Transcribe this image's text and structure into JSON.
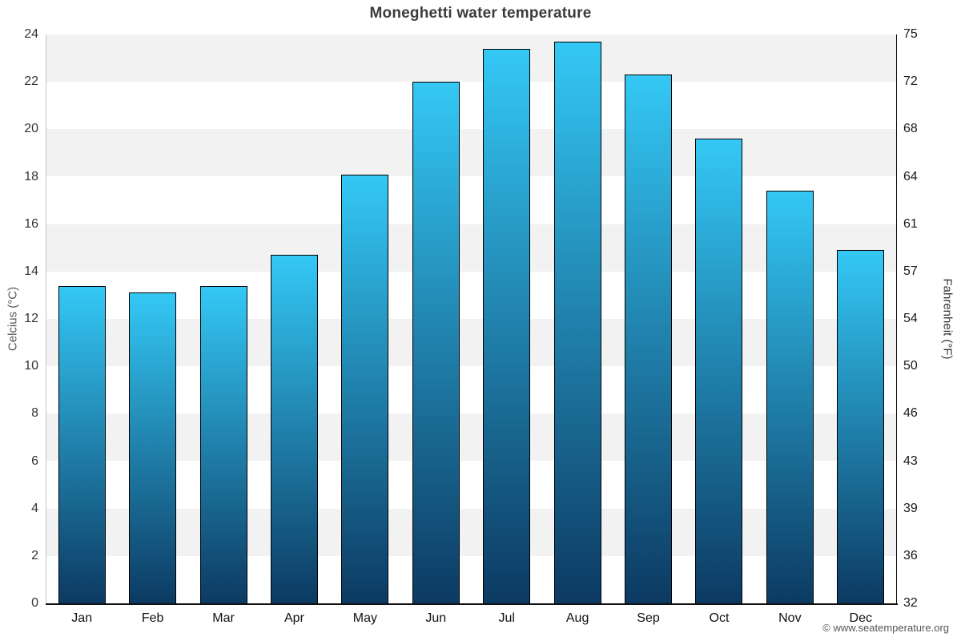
{
  "title": "Moneghetti water temperature",
  "footer": "© www.seatemperature.org",
  "left_axis": {
    "title": "Celcius (°C)",
    "ticks": [
      "24",
      "22",
      "20",
      "18",
      "16",
      "14",
      "12",
      "10",
      "8",
      "6",
      "4",
      "2",
      "0"
    ]
  },
  "right_axis": {
    "title": "Fahrenheit (°F)",
    "ticks": [
      "75",
      "72",
      "68",
      "64",
      "61",
      "57",
      "54",
      "50",
      "46",
      "43",
      "39",
      "36",
      "32"
    ]
  },
  "chart_data": {
    "type": "bar",
    "title": "Moneghetti water temperature",
    "categories": [
      "Jan",
      "Feb",
      "Mar",
      "Apr",
      "May",
      "Jun",
      "Jul",
      "Aug",
      "Sep",
      "Oct",
      "Nov",
      "Dec"
    ],
    "values": [
      13.4,
      13.1,
      13.4,
      14.7,
      18.1,
      22.0,
      23.4,
      23.7,
      22.3,
      19.6,
      17.4,
      14.9
    ],
    "xlabel": "",
    "ylabel": "Celcius (°C)",
    "ylabel_right": "Fahrenheit (°F)",
    "ylim": [
      0,
      24
    ],
    "ytick_step": 2,
    "grid": "alternating horizontal bands, gray on even bands from top",
    "legend": "none",
    "bar_style": "vertical gradient per bar, light cyan top to dark navy bottom, black outline"
  },
  "colors": {
    "bar_top": "#34c8f5",
    "bar_bottom": "#0c3a62",
    "bar_border": "#000000",
    "band_gray": "#f2f2f2",
    "band_white": "#ffffff",
    "title_text": "#3c3c3c",
    "tick_text_left": "#333333",
    "tick_text_right": "#1a1a1a",
    "month_text": "#111111",
    "axis_title_left_text": "#555555",
    "axis_title_right_text": "#333333",
    "footer_text": "#555555",
    "left_axis_line": "#c4c4c4",
    "right_axis_line": "#111111",
    "bottom_axis_line": "#111111"
  }
}
